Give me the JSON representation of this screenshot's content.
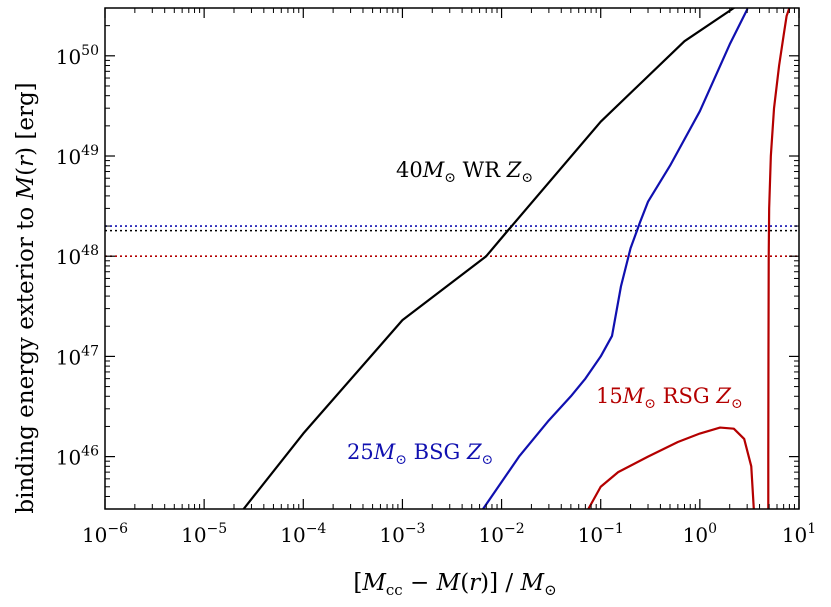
{
  "chart_data": {
    "type": "line",
    "title": "",
    "xlabel": "[M_cc − M(r)] / M_⊙",
    "ylabel": "binding energy exterior to M(r) [erg]",
    "xscale": "log",
    "yscale": "log",
    "xlim": [
      1e-06,
      10
    ],
    "ylim": [
      3e+45,
      3e+50
    ],
    "grid": false,
    "x_ticks": [
      {
        "base": "10",
        "exp": "−6",
        "value": 1e-06
      },
      {
        "base": "10",
        "exp": "−5",
        "value": 1e-05
      },
      {
        "base": "10",
        "exp": "−4",
        "value": 0.0001
      },
      {
        "base": "10",
        "exp": "−3",
        "value": 0.001
      },
      {
        "base": "10",
        "exp": "−2",
        "value": 0.01
      },
      {
        "base": "10",
        "exp": "−1",
        "value": 0.1
      },
      {
        "base": "10",
        "exp": "0",
        "value": 1
      },
      {
        "base": "10",
        "exp": "1",
        "value": 10
      }
    ],
    "y_ticks": [
      {
        "base": "10",
        "exp": "46",
        "value": 1e+46
      },
      {
        "base": "10",
        "exp": "47",
        "value": 1e+47
      },
      {
        "base": "10",
        "exp": "48",
        "value": 1e+48
      },
      {
        "base": "10",
        "exp": "49",
        "value": 1e+49
      },
      {
        "base": "10",
        "exp": "50",
        "value": 1e+50
      }
    ],
    "series": [
      {
        "name": "40M⊙ WR Z⊙",
        "color": "#000000",
        "label": {
          "mass": "40",
          "type": "WR"
        },
        "x": [
          2.5e-05,
          0.0001,
          0.001,
          0.007,
          0.011,
          0.1,
          0.7,
          2.2
        ],
        "y": [
          3e+45,
          1.7e+46,
          2.3e+47,
          1e+48,
          1.7e+48,
          2.2e+49,
          1.4e+50,
          3e+50
        ]
      },
      {
        "name": "25M⊙ BSG Z⊙",
        "color": "#1010b0",
        "label": {
          "mass": "25",
          "type": "BSG"
        },
        "x": [
          0.0065,
          0.015,
          0.03,
          0.05,
          0.07,
          0.1,
          0.13,
          0.16,
          0.2,
          0.25,
          0.3,
          0.5,
          1.0,
          2.0,
          3.0
        ],
        "y": [
          3e+45,
          1e+46,
          2.3e+46,
          4e+46,
          6e+46,
          1e+47,
          1.6e+47,
          5e+47,
          1.2e+48,
          2.2e+48,
          3.5e+48,
          8e+48,
          2.8e+49,
          1.3e+50,
          2.9e+50
        ]
      },
      {
        "name": "15M⊙ RSG Z⊙",
        "color": "#b40000",
        "label": {
          "mass": "15",
          "type": "RSG"
        },
        "x": [
          0.075,
          0.1,
          0.15,
          0.3,
          0.6,
          1.0,
          1.6,
          2.2,
          2.8,
          3.3,
          3.5
        ],
        "y": [
          3e+45,
          5e+45,
          7e+45,
          1e+46,
          1.4e+46,
          1.7e+46,
          1.95e+46,
          1.9e+46,
          1.5e+46,
          8e+45,
          3e+45
        ],
        "x2": [
          4.9,
          4.9,
          4.92,
          4.95,
          5.0,
          5.2,
          5.6,
          6.3,
          7.0,
          7.5,
          8.0
        ],
        "y2": [
          3e+45,
          1e+46,
          1e+47,
          1e+48,
          3e+48,
          1e+49,
          3e+49,
          8e+49,
          1.6e+50,
          2.5e+50,
          3e+50
        ]
      }
    ],
    "reference_lines": [
      {
        "y": 2e+48,
        "color": "#1010b0",
        "style": "dotted"
      },
      {
        "y": 1.8e+48,
        "color": "#000000",
        "style": "dotted"
      },
      {
        "y": 1e+48,
        "color": "#b40000",
        "style": "dotted"
      }
    ]
  }
}
